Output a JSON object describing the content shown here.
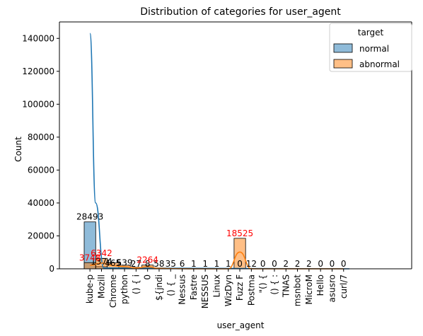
{
  "chart_data": {
    "type": "bar",
    "title": "Distribution of categories for user_agent",
    "xlabel": "user_agent",
    "ylabel": "Count",
    "ylim": [
      0,
      150000
    ],
    "yticks": [
      0,
      20000,
      40000,
      60000,
      80000,
      100000,
      120000,
      140000
    ],
    "ytick_labels": [
      "0",
      "20000",
      "40000",
      "60000",
      "80000",
      "100000",
      "120000",
      "140000"
    ],
    "categories": [
      "kube-p",
      "Mozill",
      "Chrome",
      "python",
      "() { i",
      "0",
      "${jndi",
      "() { _",
      "Nessus",
      "Fastre",
      "NESSUS",
      "Linux",
      "WizDyn",
      "Fuzz F",
      "Postma",
      "\"() {",
      "() { :",
      "TNAS",
      "msnbot",
      "MicroM",
      "Hello",
      "asusro",
      "curl/7"
    ],
    "series": [
      {
        "name": "normal",
        "color": "#1f77b4",
        "values": [
          28493,
          1374,
          465,
          539,
          27,
          8,
          58,
          35,
          6,
          1,
          1,
          1,
          1,
          0,
          12,
          0,
          0,
          2,
          2,
          2,
          0,
          0,
          0
        ],
        "labels": [
          "28493",
          "1374",
          "465",
          "539",
          "27",
          "8",
          "58",
          "35",
          "6",
          "1",
          "1",
          "1",
          "1",
          "0",
          "12",
          "0",
          "0",
          "2",
          "2",
          "2",
          "0",
          "0",
          "0"
        ],
        "label_color": "#000000"
      },
      {
        "name": "abnormal",
        "color": "#ff7f0e",
        "values": [
          3748,
          6342,
          3600,
          2200,
          900,
          2264,
          500,
          300,
          100,
          1,
          1,
          1,
          1,
          18525,
          10,
          0,
          0,
          2,
          2,
          2,
          0,
          0,
          0
        ],
        "labels": [
          "3748",
          "6342",
          "",
          "",
          "",
          "2264",
          "",
          "",
          "",
          "",
          "",
          "",
          "",
          "18525",
          "",
          "",
          "",
          "",
          "",
          "",
          "",
          "",
          ""
        ],
        "label_color": "#ff0000"
      }
    ],
    "kde_normal_peak": 143000,
    "legend": {
      "title": "target",
      "position": "top-right",
      "entries": [
        "normal",
        "abnormal"
      ]
    },
    "grid": false
  }
}
